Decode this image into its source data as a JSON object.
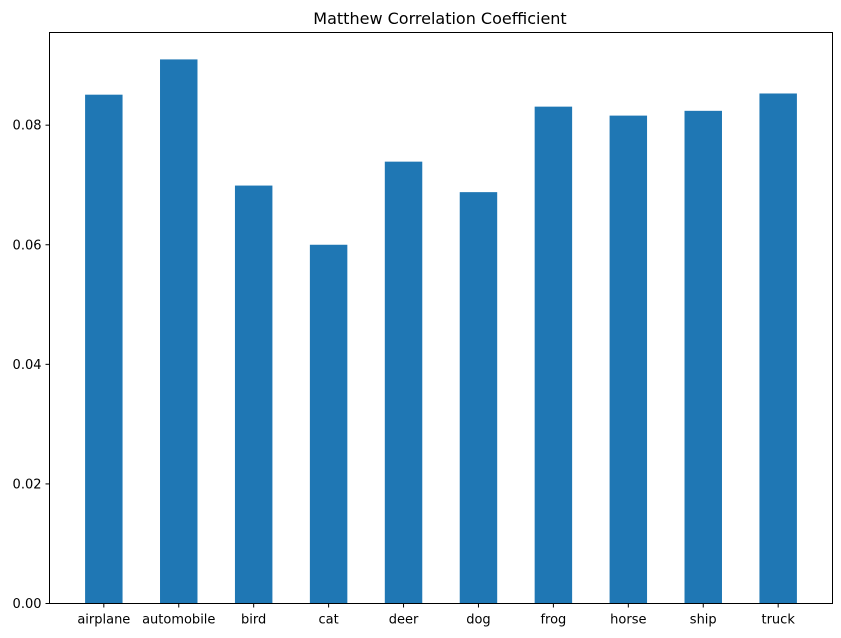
{
  "chart_data": {
    "type": "bar",
    "title": "Matthew Correlation Coefficient",
    "xlabel": "",
    "ylabel": "",
    "categories": [
      "airplane",
      "automobile",
      "bird",
      "cat",
      "deer",
      "dog",
      "frog",
      "horse",
      "ship",
      "truck"
    ],
    "values": [
      0.0851,
      0.091,
      0.0699,
      0.06,
      0.0739,
      0.0688,
      0.0831,
      0.0816,
      0.0824,
      0.0853
    ],
    "ylim": [
      0,
      0.0955
    ],
    "yticks": [
      0.0,
      0.02,
      0.04,
      0.06,
      0.08
    ],
    "ytick_labels": [
      "0.00",
      "0.02",
      "0.04",
      "0.06",
      "0.08"
    ],
    "grid": false,
    "bar_color": "#1f77b4"
  }
}
